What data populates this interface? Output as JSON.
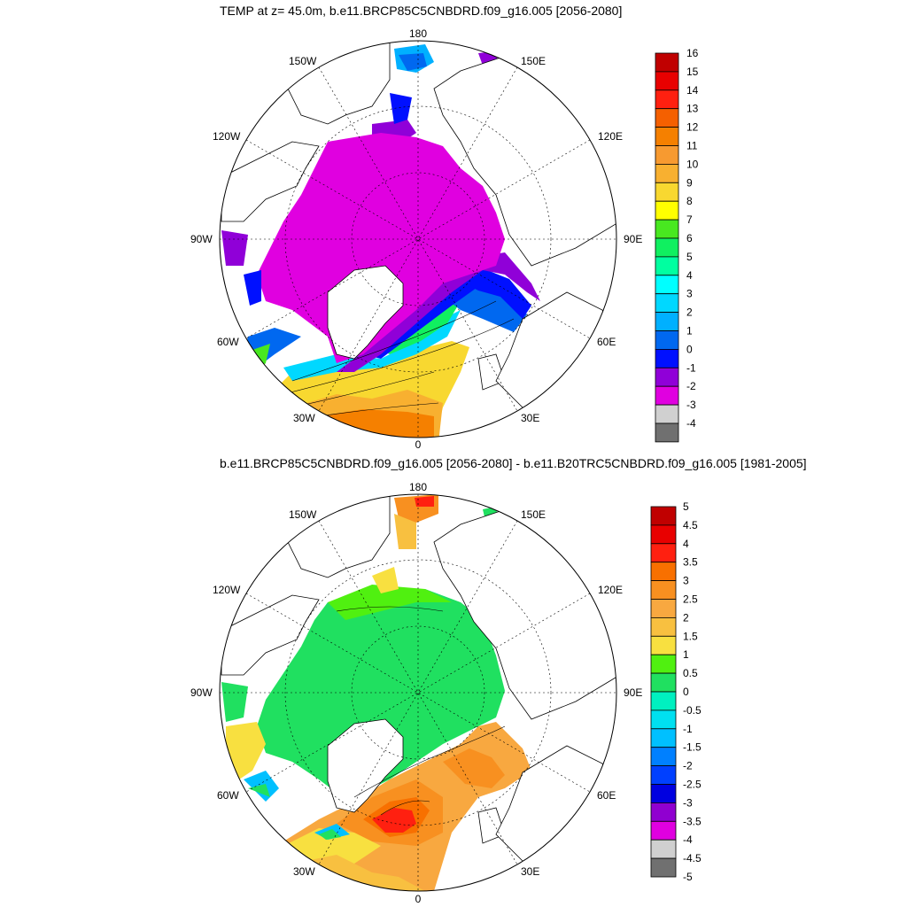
{
  "top_panel": {
    "title": "TEMP at z=  45.0m, b.e11.BRCP85C5CNBDRD.f09_g16.005 [2056-2080]",
    "longitude_labels": [
      "180",
      "150E",
      "120E",
      "90E",
      "60E",
      "30E",
      "0",
      "30W",
      "60W",
      "90W",
      "120W",
      "150W"
    ],
    "colorbar": {
      "labels": [
        "16",
        "15",
        "14",
        "13",
        "12",
        "11",
        "10",
        "9",
        "8",
        "7",
        "6",
        "5",
        "4",
        "3",
        "2",
        "1",
        "0",
        "-1",
        "-2",
        "-3",
        "-4"
      ],
      "colors": [
        "#c00000",
        "#e80000",
        "#ff2010",
        "#f56000",
        "#f58000",
        "#f79a30",
        "#f8b030",
        "#f8d830",
        "#ffff00",
        "#48e820",
        "#10f060",
        "#00ffa0",
        "#00ffff",
        "#00d8ff",
        "#00b0ff",
        "#0068f0",
        "#0010ff",
        "#9000d8",
        "#e000e0",
        "#d0d0d0",
        "#707070"
      ]
    }
  },
  "bottom_panel": {
    "title": "b.e11.BRCP85C5CNBDRD.f09_g16.005 [2056-2080] - b.e11.B20TRC5CNBDRD.f09_g16.005 [1981-2005]",
    "longitude_labels": [
      "180",
      "150E",
      "120E",
      "90E",
      "60E",
      "30E",
      "0",
      "30W",
      "60W",
      "90W",
      "120W",
      "150W"
    ],
    "colorbar": {
      "labels": [
        "5",
        "4.5",
        "4",
        "3.5",
        "3",
        "2.5",
        "2",
        "1.5",
        "1",
        "0.5",
        "0",
        "-0.5",
        "-1",
        "-1.5",
        "-2",
        "-2.5",
        "-3",
        "-3.5",
        "-4",
        "-4.5",
        "-5"
      ],
      "colors": [
        "#c00000",
        "#e80000",
        "#ff2010",
        "#f87000",
        "#f89020",
        "#f8a840",
        "#f8c040",
        "#f8e040",
        "#50f010",
        "#20e060",
        "#00f0c0",
        "#00e0f0",
        "#00c0ff",
        "#0080ff",
        "#0040ff",
        "#0000e0",
        "#9000d0",
        "#e000e0",
        "#d0d0d0",
        "#707070"
      ]
    }
  }
}
